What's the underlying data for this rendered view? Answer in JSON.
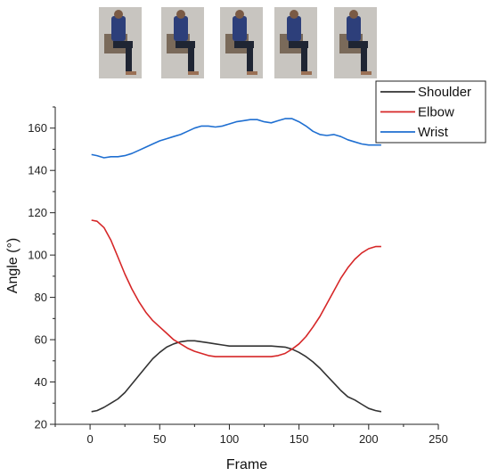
{
  "thumbnails": [
    {
      "name": "frame-thumbnail-1",
      "shirt": "#2d3f7a",
      "bg": "#c8c5c0"
    },
    {
      "name": "frame-thumbnail-2",
      "shirt": "#2d3f7a",
      "bg": "#c8c5c0"
    },
    {
      "name": "frame-thumbnail-3",
      "shirt": "#2d3f7a",
      "bg": "#c8c5c0"
    },
    {
      "name": "frame-thumbnail-4",
      "shirt": "#2d3f7a",
      "bg": "#c8c5c0"
    },
    {
      "name": "frame-thumbnail-5",
      "shirt": "#2d3f7a",
      "bg": "#c8c5c0"
    }
  ],
  "chart_data": {
    "type": "line",
    "title": "",
    "xlabel": "Frame",
    "ylabel": "Angle (°)",
    "xlim": [
      -25,
      250
    ],
    "ylim": [
      20,
      170
    ],
    "xticks": [
      0,
      50,
      100,
      150,
      200,
      250
    ],
    "yticks": [
      20,
      40,
      60,
      80,
      100,
      120,
      140,
      160
    ],
    "grid": false,
    "legend_position": "top-right",
    "series": [
      {
        "name": "Shoulder",
        "color": "#333333",
        "x": [
          1,
          5,
          10,
          15,
          20,
          25,
          30,
          35,
          40,
          45,
          50,
          55,
          60,
          65,
          70,
          75,
          80,
          85,
          90,
          95,
          100,
          110,
          120,
          130,
          140,
          145,
          150,
          155,
          160,
          165,
          170,
          175,
          180,
          185,
          190,
          195,
          200,
          205,
          209
        ],
        "y": [
          26,
          26.5,
          28,
          30,
          32,
          35,
          39,
          43,
          47,
          51,
          54,
          56.5,
          58,
          59,
          59.5,
          59.5,
          59,
          58.5,
          58,
          57.5,
          57,
          57,
          57,
          57,
          56.5,
          55.5,
          54,
          52,
          49.5,
          46.5,
          43,
          39.5,
          36,
          33,
          31.5,
          29.5,
          27.5,
          26.5,
          26
        ]
      },
      {
        "name": "Elbow",
        "color": "#d62728",
        "x": [
          1,
          5,
          10,
          15,
          20,
          25,
          30,
          35,
          40,
          45,
          50,
          55,
          60,
          65,
          70,
          75,
          80,
          85,
          90,
          100,
          110,
          120,
          130,
          135,
          140,
          145,
          150,
          155,
          160,
          165,
          170,
          175,
          180,
          185,
          190,
          195,
          200,
          205,
          209
        ],
        "y": [
          116.5,
          116,
          113,
          107,
          99,
          91,
          84,
          78,
          73,
          69,
          66,
          63,
          60,
          58,
          56,
          54.5,
          53.5,
          52.5,
          52,
          52,
          52,
          52,
          52,
          52.5,
          53.5,
          55.5,
          58,
          61.5,
          66,
          71,
          77,
          83,
          89,
          94,
          98,
          101,
          103,
          104,
          104
        ]
      },
      {
        "name": "Wrist",
        "color": "#1f6fd1",
        "x": [
          1,
          5,
          10,
          15,
          20,
          25,
          30,
          35,
          40,
          45,
          50,
          55,
          60,
          65,
          70,
          75,
          80,
          85,
          90,
          95,
          100,
          105,
          110,
          115,
          120,
          125,
          130,
          135,
          140,
          145,
          150,
          155,
          160,
          165,
          170,
          175,
          180,
          185,
          190,
          195,
          200,
          205,
          209
        ],
        "y": [
          147.5,
          147,
          146,
          146.5,
          146.5,
          147,
          148,
          149.5,
          151,
          152.5,
          154,
          155,
          156,
          157,
          158.5,
          160,
          161,
          161,
          160.5,
          161,
          162,
          163,
          163.5,
          164,
          164,
          163,
          162.5,
          163.5,
          164.5,
          164.5,
          163,
          161,
          158.5,
          157,
          156.5,
          157,
          156,
          154.5,
          153.5,
          152.5,
          152,
          152,
          152
        ]
      }
    ]
  }
}
